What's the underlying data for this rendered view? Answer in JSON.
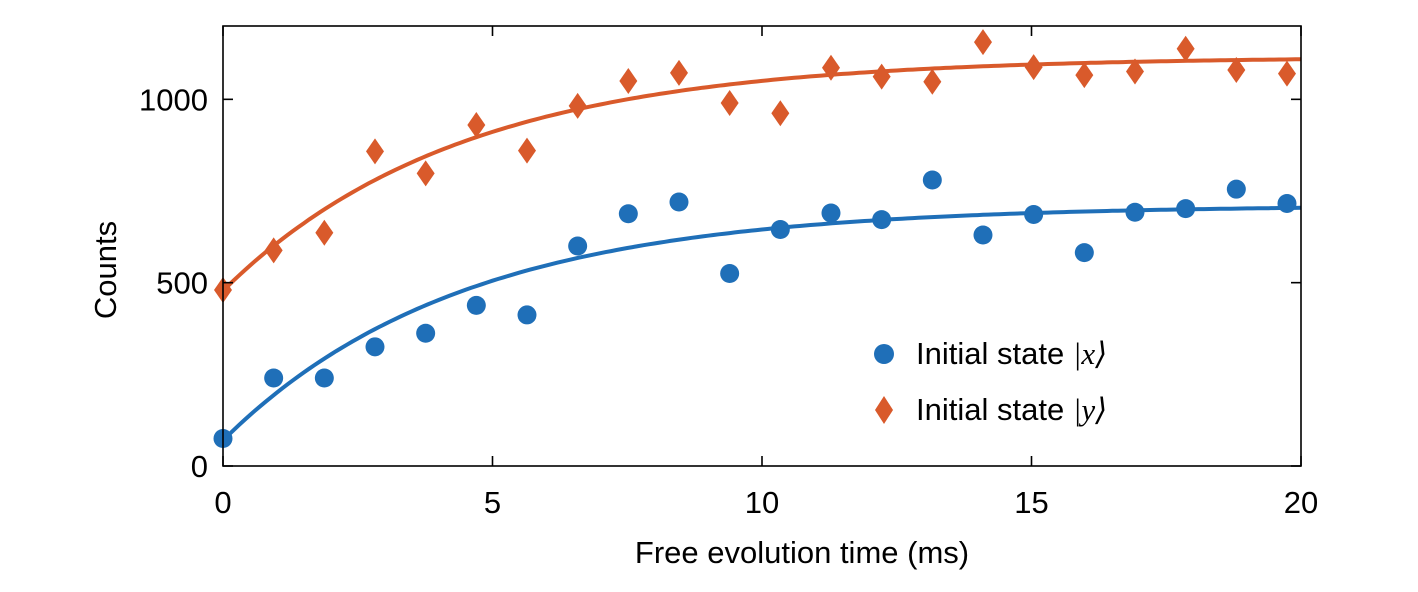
{
  "chart_data": {
    "type": "scatter",
    "title": "",
    "xlabel": "Free evolution time (ms)",
    "ylabel": "Counts",
    "xlim": [
      0,
      20
    ],
    "ylim": [
      0,
      1200
    ],
    "xticks": [
      "0",
      "5",
      "10",
      "15",
      "20"
    ],
    "yticks": [
      "0",
      "500",
      "1000"
    ],
    "grid": false,
    "legend_position": "bottom-right",
    "series": [
      {
        "name": "Initial state |x⟩",
        "legend_text": "Initial state ",
        "legend_math": "|x⟩",
        "marker": "circle",
        "color": "#1f6fb8",
        "x": [
          0,
          0.94,
          1.88,
          2.82,
          3.76,
          4.7,
          5.64,
          6.58,
          7.52,
          8.46,
          9.4,
          10.34,
          11.28,
          12.22,
          13.16,
          14.1,
          15.04,
          15.98,
          16.92,
          17.86,
          18.8,
          19.74
        ],
        "values": [
          75,
          240,
          240,
          325,
          362,
          438,
          412,
          600,
          688,
          720,
          525,
          645,
          690,
          672,
          780,
          630,
          686,
          582,
          692,
          702,
          755,
          716
        ],
        "fit": {
          "model": "A - (A - y0)·exp(-t/τ)",
          "A": 711,
          "y0": 70,
          "tau_ms": 4.4
        }
      },
      {
        "name": "Initial state |y⟩",
        "legend_text": "Initial state ",
        "legend_math": "|y⟩",
        "marker": "diamond",
        "color": "#d95a2b",
        "x": [
          0,
          0.94,
          1.88,
          2.82,
          3.76,
          4.7,
          5.64,
          6.58,
          7.52,
          8.46,
          9.4,
          10.34,
          11.28,
          12.22,
          13.16,
          14.1,
          15.04,
          15.98,
          16.92,
          17.86,
          18.8,
          19.74
        ],
        "values": [
          480,
          588,
          636,
          858,
          798,
          930,
          860,
          982,
          1050,
          1072,
          990,
          962,
          1086,
          1062,
          1048,
          1156,
          1088,
          1066,
          1076,
          1138,
          1080,
          1070
        ],
        "fit": {
          "model": "A - (A - y0)·exp(-t/τ)",
          "A": 1116,
          "y0": 478,
          "tau_ms": 4.4
        }
      }
    ]
  }
}
